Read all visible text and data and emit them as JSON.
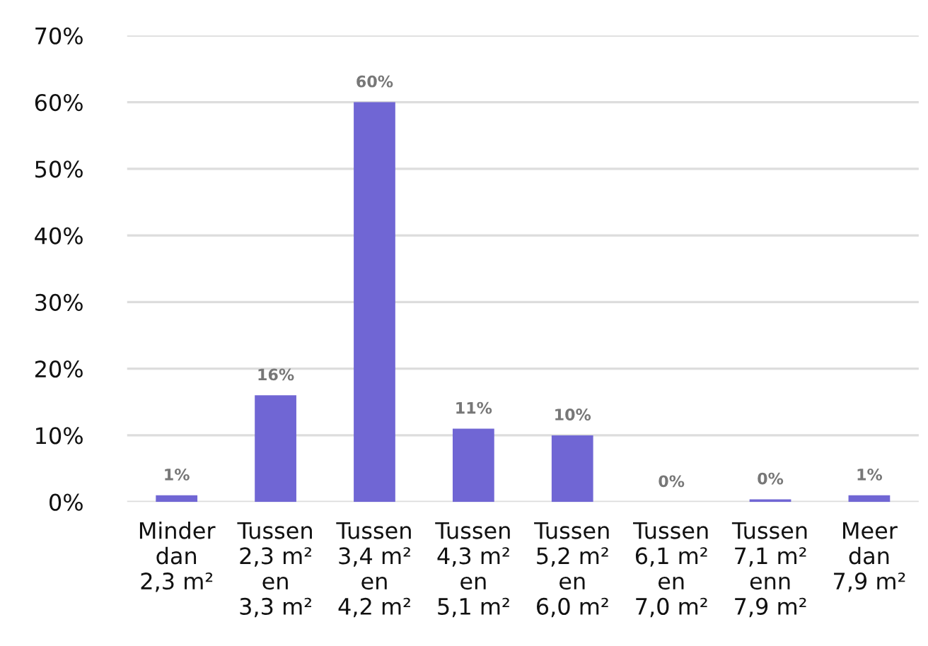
{
  "chart_data": {
    "type": "bar",
    "categories": [
      "Minder\ndan\n2,3 m²",
      "Tussen\n2,3 m²\nen\n3,3 m²",
      "Tussen\n3,4 m²\nen\n4,2 m²",
      "Tussen\n4,3 m²\nen\n5,1 m²",
      "Tussen\n5,2 m²\nen\n6,0 m²",
      "Tussen\n6,1 m²\nen\n7,0 m²",
      "Tussen\n7,1 m²\nenn\n7,9 m²",
      "Meer\ndan\n7,9 m²"
    ],
    "values": [
      1,
      16,
      60,
      11,
      10,
      0,
      0.4,
      1
    ],
    "value_labels": [
      "1%",
      "16%",
      "60%",
      "11%",
      "10%",
      "0%",
      "0%",
      "1%"
    ],
    "color": "#7066d4",
    "ylim": [
      0,
      70
    ],
    "yticks": [
      {
        "value": 0,
        "label": "0%"
      },
      {
        "value": 10,
        "label": "10%"
      },
      {
        "value": 20,
        "label": "20%"
      },
      {
        "value": 30,
        "label": "30%"
      },
      {
        "value": 40,
        "label": "40%"
      },
      {
        "value": 50,
        "label": "50%"
      },
      {
        "value": 60,
        "label": "60%"
      },
      {
        "value": 70,
        "label": "70%"
      }
    ],
    "grid": "y"
  }
}
